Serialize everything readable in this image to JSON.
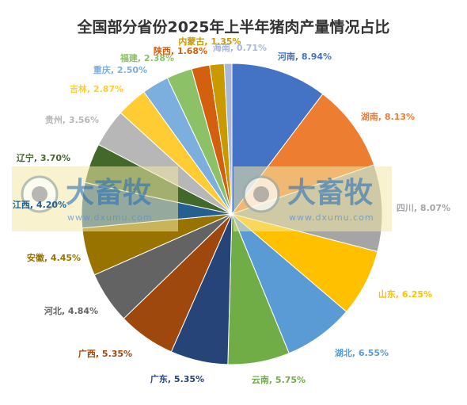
{
  "chart_data": {
    "type": "pie",
    "title": "全国部分省份2025年上半年猪肉产量情况占比",
    "values": [
      8.94,
      8.13,
      8.07,
      6.25,
      6.55,
      5.75,
      5.35,
      5.35,
      4.84,
      4.45,
      4.2,
      3.7,
      3.56,
      2.87,
      2.5,
      2.38,
      1.68,
      1.35,
      0.71
    ],
    "value_labels": [
      "河南, 8.94%",
      "湖南, 8.13%",
      "四川, 8.07%",
      "山东, 6.25%",
      "湖北, 6.55%",
      "云南, 5.75%",
      "广东, 5.35%",
      "广西, 5.35%",
      "河北, 4.84%",
      "安徽, 4.45%",
      "江西, 4.20%",
      "辽宁, 3.70%",
      "贵州, 3.56%",
      "吉林, 2.87%",
      "重庆, 2.50%",
      "福建, 2.38%",
      "陕西, 1.68%",
      "内蒙古, 1.35%",
      "海南, 0.71%"
    ],
    "colors": [
      "#4472c4",
      "#ed7d31",
      "#a5a5a5",
      "#ffc000",
      "#5b9bd5",
      "#70ad47",
      "#264478",
      "#9e480e",
      "#636363",
      "#997300",
      "#255e91",
      "#43682b",
      "#b7b7b7",
      "#ffcd33",
      "#7cafdd",
      "#8cc168",
      "#d2600f",
      "#c99a00",
      "#a9b8d8"
    ],
    "watermark": {
      "text": "大畜牧",
      "url": "www.dxumu.com"
    }
  }
}
